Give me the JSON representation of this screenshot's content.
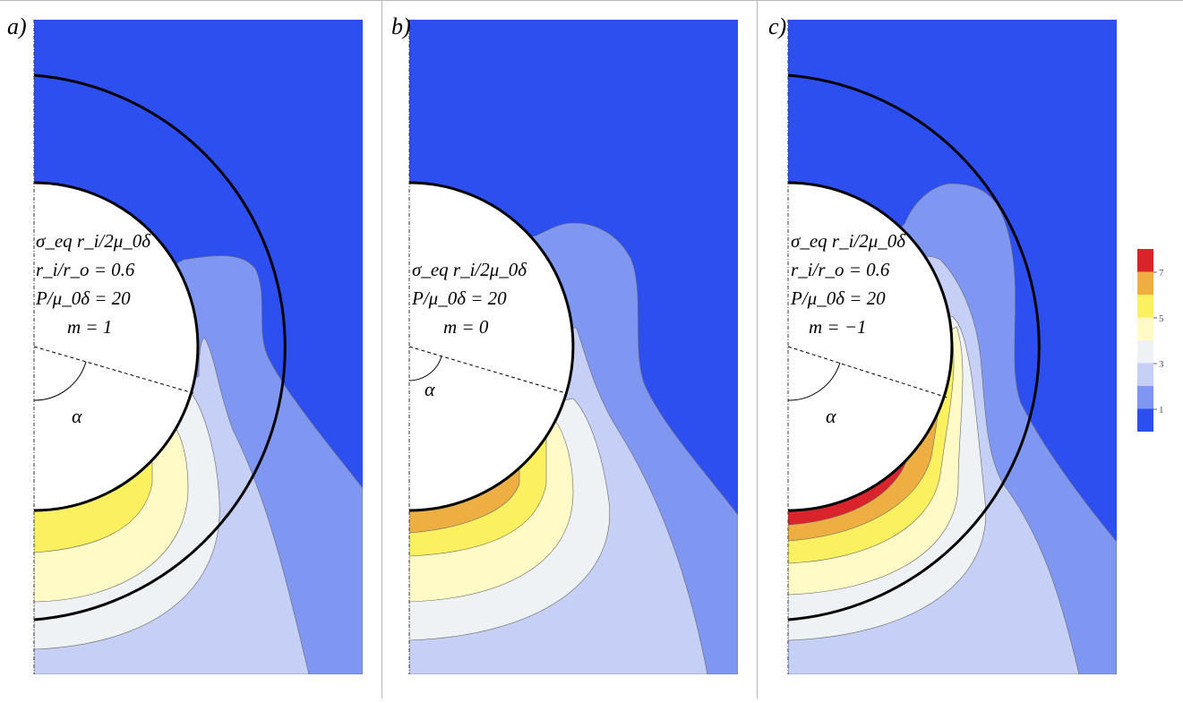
{
  "colors": {
    "c0": "#2e4ff0",
    "c1": "#8097f1",
    "c2": "#c6d0f6",
    "c3": "#eef2f4",
    "c4": "#fffac6",
    "c5": "#fbf160",
    "c6": "#edaf42",
    "c7": "#d8242a",
    "rim": "#000000",
    "hole": "#ffffff"
  },
  "panels": [
    {
      "label": "a)",
      "lines": [
        "σ_eq r_i/2μ_0δ",
        "r_i/r_o = 0.6",
        "P/μ_0δ = 20",
        "m = 1"
      ],
      "alpha": "α",
      "has_outer_ring": true
    },
    {
      "label": "b)",
      "lines": [
        "σ_eq r_i/2μ_0δ",
        "P/μ_0δ = 20",
        "m = 0"
      ],
      "alpha": "α",
      "has_outer_ring": false
    },
    {
      "label": "c)",
      "lines": [
        "σ_eq r_i/2μ_0δ",
        "r_i/r_o = 0.6",
        "P/μ_0δ = 20",
        "m = −1"
      ],
      "alpha": "α",
      "has_outer_ring": true
    }
  ],
  "colorbar": {
    "ticks": [
      "7",
      "5",
      "3",
      "1"
    ]
  }
}
